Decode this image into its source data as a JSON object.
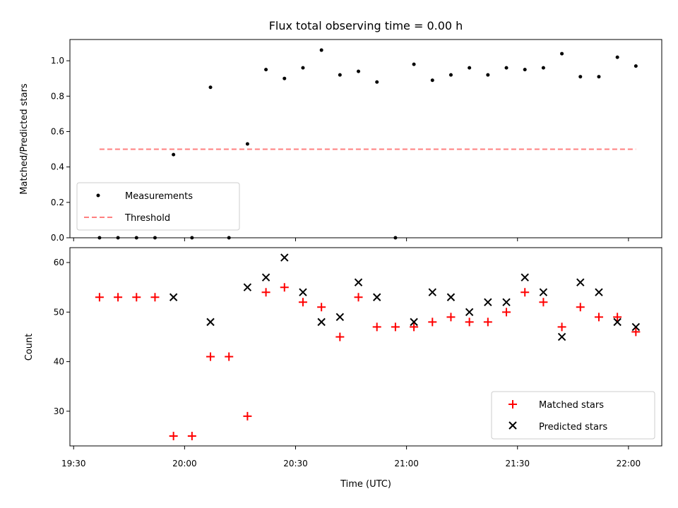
{
  "chart_data": [
    {
      "type": "scatter",
      "title": "Flux total observing time = 0.00 h",
      "xlabel": "",
      "ylabel": "Matched/Predicted stars",
      "xlim": [
        "19:29",
        "22:09"
      ],
      "ylim": [
        0,
        1.12
      ],
      "yticks": [
        0.0,
        0.2,
        0.4,
        0.6,
        0.8,
        1.0
      ],
      "ytick_labels": [
        "0.0",
        "0.2",
        "0.4",
        "0.6",
        "0.8",
        "1.0"
      ],
      "grid": false,
      "legend": {
        "position": "lower left",
        "entries": [
          "Measurements",
          "Threshold"
        ]
      },
      "series": [
        {
          "name": "Measurements",
          "marker": "dot",
          "color": "#000000",
          "x": [
            "19:37",
            "19:42",
            "19:47",
            "19:52",
            "19:57",
            "20:02",
            "20:07",
            "20:12",
            "20:17",
            "20:22",
            "20:27",
            "20:32",
            "20:37",
            "20:42",
            "20:47",
            "20:52",
            "20:57",
            "21:02",
            "21:07",
            "21:12",
            "21:17",
            "21:22",
            "21:27",
            "21:32",
            "21:37",
            "21:42",
            "21:47",
            "21:52",
            "21:57",
            "22:02"
          ],
          "y": [
            0.0,
            0.0,
            0.0,
            0.0,
            0.47,
            0.0,
            0.85,
            0.0,
            0.53,
            0.95,
            0.9,
            0.96,
            1.06,
            0.92,
            0.94,
            0.88,
            0.0,
            0.98,
            0.89,
            0.92,
            0.96,
            0.92,
            0.96,
            0.95,
            0.96,
            1.04,
            0.91,
            0.91,
            1.02,
            0.97
          ]
        },
        {
          "name": "Threshold",
          "type": "line",
          "style": "dashed",
          "color": "#ff7f7f",
          "x": [
            "19:37",
            "22:02"
          ],
          "y": [
            0.5,
            0.5
          ]
        }
      ]
    },
    {
      "type": "scatter",
      "title": "",
      "xlabel": "Time (UTC)",
      "ylabel": "Count",
      "xlim": [
        "19:29",
        "22:09"
      ],
      "xticks": [
        "19:30",
        "20:00",
        "20:30",
        "21:00",
        "21:30",
        "22:00"
      ],
      "ylim": [
        23,
        63
      ],
      "yticks": [
        30,
        40,
        50,
        60
      ],
      "grid": false,
      "legend": {
        "position": "lower right",
        "entries": [
          "Matched stars",
          "Predicted stars"
        ]
      },
      "series": [
        {
          "name": "Matched stars",
          "marker": "plus",
          "color": "#ff0000",
          "x": [
            "19:37",
            "19:42",
            "19:47",
            "19:52",
            "19:57",
            "20:02",
            "20:07",
            "20:12",
            "20:17",
            "20:22",
            "20:27",
            "20:32",
            "20:37",
            "20:42",
            "20:47",
            "20:52",
            "20:57",
            "21:02",
            "21:07",
            "21:12",
            "21:17",
            "21:22",
            "21:27",
            "21:32",
            "21:37",
            "21:42",
            "21:47",
            "21:52",
            "21:57",
            "22:02"
          ],
          "y": [
            53,
            53,
            53,
            53,
            25,
            25,
            41,
            41,
            29,
            54,
            55,
            52,
            51,
            45,
            53,
            47,
            47,
            47,
            48,
            49,
            48,
            48,
            50,
            54,
            52,
            47,
            51,
            49,
            49,
            46
          ]
        },
        {
          "name": "Predicted stars",
          "marker": "x",
          "color": "#000000",
          "x": [
            "19:57",
            "20:07",
            "20:17",
            "20:22",
            "20:27",
            "20:32",
            "20:37",
            "20:42",
            "20:47",
            "20:52",
            "21:02",
            "21:07",
            "21:12",
            "21:17",
            "21:22",
            "21:27",
            "21:32",
            "21:37",
            "21:42",
            "21:47",
            "21:52",
            "21:57",
            "22:02"
          ],
          "y": [
            53,
            48,
            55,
            57,
            61,
            54,
            48,
            49,
            56,
            53,
            48,
            54,
            53,
            50,
            52,
            52,
            57,
            54,
            45,
            56,
            54,
            48,
            47
          ]
        }
      ]
    }
  ]
}
